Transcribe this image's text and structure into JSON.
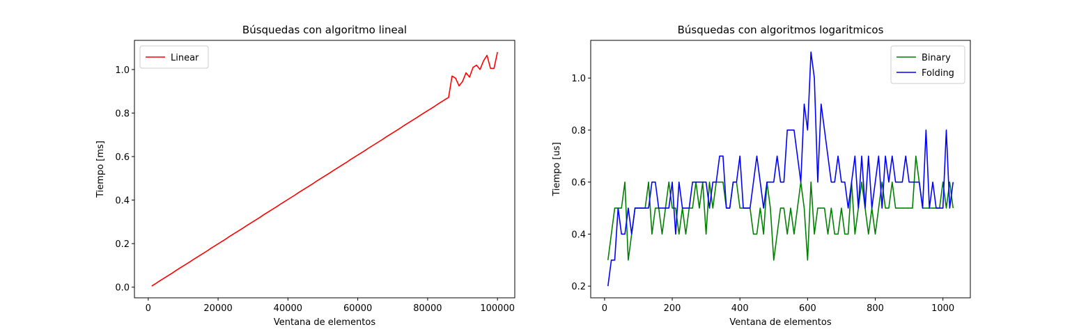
{
  "chart_data": [
    {
      "type": "line",
      "title": "Búsquedas con algoritmo lineal",
      "xlabel": "Ventana de elementos",
      "ylabel": "Tiempo [ms]",
      "x": [
        1000,
        2000,
        3000,
        4000,
        5000,
        6000,
        7000,
        8000,
        9000,
        10000,
        11000,
        12000,
        13000,
        14000,
        15000,
        16000,
        17000,
        18000,
        19000,
        20000,
        21000,
        22000,
        23000,
        24000,
        25000,
        26000,
        27000,
        28000,
        29000,
        30000,
        31000,
        32000,
        33000,
        34000,
        35000,
        36000,
        37000,
        38000,
        39000,
        40000,
        41000,
        42000,
        43000,
        44000,
        45000,
        46000,
        47000,
        48000,
        49000,
        50000,
        51000,
        52000,
        53000,
        54000,
        55000,
        56000,
        57000,
        58000,
        59000,
        60000,
        61000,
        62000,
        63000,
        64000,
        65000,
        66000,
        67000,
        68000,
        69000,
        70000,
        71000,
        72000,
        73000,
        74000,
        75000,
        76000,
        77000,
        78000,
        79000,
        80000,
        81000,
        82000,
        83000,
        84000,
        85000,
        86000,
        87000,
        88000,
        89000,
        90000,
        91000,
        92000,
        93000,
        94000,
        95000,
        96000,
        97000,
        98000,
        99000,
        100000
      ],
      "series": [
        {
          "name": "Linear",
          "color": "#ff0000",
          "values": [
            0.005,
            0.015,
            0.026,
            0.036,
            0.046,
            0.056,
            0.066,
            0.077,
            0.087,
            0.097,
            0.107,
            0.117,
            0.128,
            0.138,
            0.148,
            0.158,
            0.168,
            0.179,
            0.189,
            0.199,
            0.209,
            0.219,
            0.23,
            0.24,
            0.25,
            0.26,
            0.27,
            0.281,
            0.291,
            0.301,
            0.311,
            0.321,
            0.332,
            0.342,
            0.352,
            0.362,
            0.372,
            0.383,
            0.393,
            0.403,
            0.413,
            0.423,
            0.434,
            0.444,
            0.454,
            0.464,
            0.474,
            0.485,
            0.495,
            0.505,
            0.515,
            0.525,
            0.536,
            0.546,
            0.556,
            0.566,
            0.576,
            0.587,
            0.597,
            0.607,
            0.617,
            0.627,
            0.638,
            0.648,
            0.658,
            0.668,
            0.678,
            0.689,
            0.699,
            0.709,
            0.719,
            0.729,
            0.74,
            0.75,
            0.76,
            0.77,
            0.78,
            0.791,
            0.801,
            0.811,
            0.821,
            0.831,
            0.842,
            0.852,
            0.862,
            0.872,
            0.97,
            0.96,
            0.925,
            0.945,
            0.985,
            0.965,
            1.01,
            1.02,
            1.0,
            1.04,
            1.065,
            1.005,
            1.005,
            1.08
          ]
        }
      ],
      "xlim": [
        -3950,
        104950
      ],
      "xticks": [
        0,
        20000,
        40000,
        60000,
        80000,
        100000
      ],
      "ylim": [
        -0.049,
        1.134
      ],
      "yticks": [
        {
          "value": 0,
          "label": "0.0"
        },
        0.2,
        0.4,
        0.6,
        0.8,
        {
          "value": 1,
          "label": "1.0"
        }
      ],
      "legend": "upper left"
    },
    {
      "type": "line",
      "title": "Búsquedas con algoritmos logaritmicos",
      "xlabel": "Ventana de elementos",
      "ylabel": "Tiempo [us]",
      "x": [
        10,
        20,
        30,
        40,
        50,
        60,
        70,
        80,
        90,
        100,
        110,
        120,
        130,
        140,
        150,
        160,
        170,
        180,
        190,
        200,
        210,
        220,
        230,
        240,
        250,
        260,
        270,
        280,
        290,
        300,
        310,
        320,
        330,
        340,
        350,
        360,
        370,
        380,
        390,
        400,
        410,
        420,
        430,
        440,
        450,
        460,
        470,
        480,
        490,
        500,
        510,
        520,
        530,
        540,
        550,
        560,
        570,
        580,
        590,
        600,
        610,
        620,
        630,
        640,
        650,
        660,
        670,
        680,
        690,
        700,
        710,
        720,
        730,
        740,
        750,
        760,
        770,
        780,
        790,
        800,
        810,
        820,
        830,
        840,
        850,
        860,
        870,
        880,
        890,
        900,
        910,
        920,
        930,
        940,
        950,
        960,
        970,
        980,
        990,
        1000,
        1010,
        1020,
        1030
      ],
      "series": [
        {
          "name": "Binary",
          "color": "#008000",
          "values": [
            0.3,
            0.4,
            0.5,
            0.5,
            0.5,
            0.6,
            0.3,
            0.4,
            0.5,
            0.5,
            0.5,
            0.5,
            0.6,
            0.4,
            0.5,
            0.5,
            0.4,
            0.5,
            0.6,
            0.5,
            0.5,
            0.4,
            0.5,
            0.4,
            0.5,
            0.5,
            0.6,
            0.5,
            0.6,
            0.4,
            0.6,
            0.5,
            0.6,
            0.6,
            0.6,
            0.5,
            0.5,
            0.6,
            0.6,
            0.5,
            0.5,
            0.5,
            0.5,
            0.4,
            0.4,
            0.5,
            0.4,
            0.6,
            0.5,
            0.3,
            0.4,
            0.5,
            0.5,
            0.4,
            0.5,
            0.4,
            0.5,
            0.6,
            0.5,
            0.3,
            0.6,
            0.4,
            0.5,
            0.5,
            0.5,
            0.4,
            0.5,
            0.4,
            0.4,
            0.5,
            0.4,
            0.4,
            0.6,
            0.4,
            0.5,
            0.6,
            0.5,
            0.4,
            0.5,
            0.4,
            0.5,
            0.6,
            0.5,
            0.5,
            0.6,
            0.5,
            0.5,
            0.5,
            0.5,
            0.5,
            0.5,
            0.7,
            0.6,
            0.5,
            0.5,
            0.5,
            0.5,
            0.5,
            0.5,
            0.6,
            0.5,
            0.6,
            0.5
          ]
        },
        {
          "name": "Folding",
          "color": "#0000ff",
          "values": [
            0.2,
            0.3,
            0.3,
            0.5,
            0.4,
            0.4,
            0.5,
            0.4,
            0.5,
            0.5,
            0.5,
            0.5,
            0.5,
            0.6,
            0.6,
            0.5,
            0.5,
            0.5,
            0.5,
            0.6,
            0.4,
            0.6,
            0.5,
            0.5,
            0.5,
            0.6,
            0.6,
            0.6,
            0.6,
            0.6,
            0.5,
            0.6,
            0.6,
            0.7,
            0.7,
            0.5,
            0.5,
            0.6,
            0.6,
            0.7,
            0.5,
            0.5,
            0.5,
            0.6,
            0.7,
            0.6,
            0.5,
            0.6,
            0.6,
            0.6,
            0.7,
            0.6,
            0.6,
            0.8,
            0.8,
            0.8,
            0.7,
            0.6,
            0.9,
            0.8,
            1.1,
            1.0,
            0.6,
            0.9,
            0.8,
            0.7,
            0.6,
            0.6,
            0.7,
            0.6,
            0.6,
            0.5,
            0.6,
            0.7,
            0.5,
            0.7,
            0.5,
            0.7,
            0.5,
            0.6,
            0.7,
            0.5,
            0.7,
            0.6,
            0.7,
            0.6,
            0.6,
            0.6,
            0.7,
            0.6,
            0.6,
            0.6,
            0.6,
            0.5,
            0.8,
            0.5,
            0.6,
            0.5,
            0.5,
            0.5,
            0.8,
            0.5,
            0.6
          ]
        }
      ],
      "xlim": [
        -41,
        1081
      ],
      "xticks": [
        0,
        200,
        400,
        600,
        800,
        1000
      ],
      "ylim": [
        0.155,
        1.145
      ],
      "yticks": [
        0.2,
        0.4,
        0.6,
        0.8,
        {
          "value": 1,
          "label": "1.0"
        }
      ],
      "legend": "upper right"
    }
  ]
}
